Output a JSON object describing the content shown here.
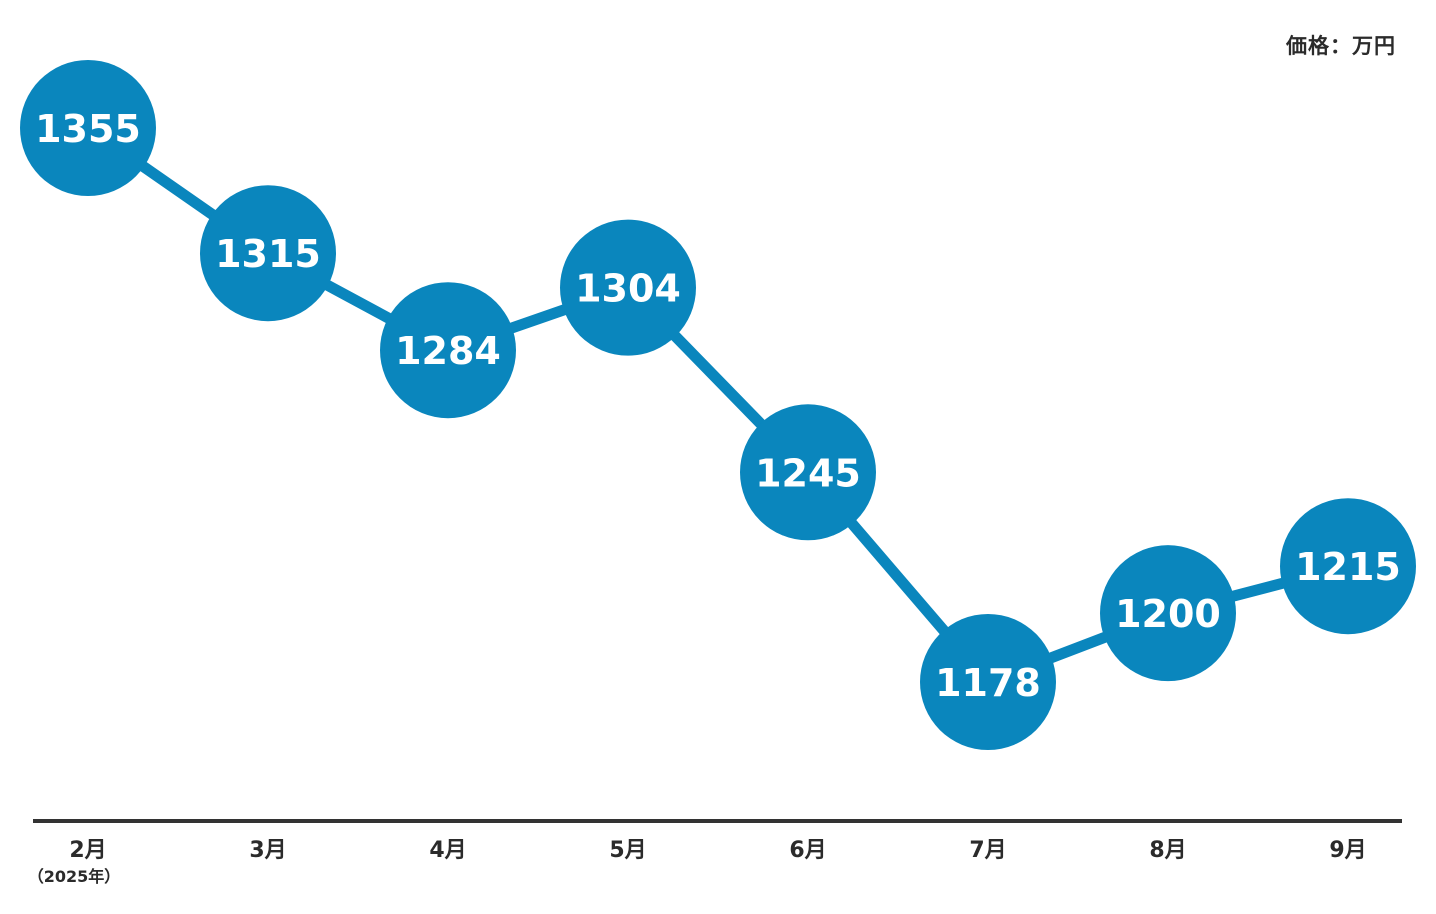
{
  "unit_label": "価格：万円",
  "colors": {
    "series": "#0A86BD",
    "axis": "#333333",
    "label_text": "#ffffff",
    "tick_text": "#2b2b2b"
  },
  "chart_data": {
    "type": "line",
    "categories": [
      "2月",
      "3月",
      "4月",
      "5月",
      "6月",
      "7月",
      "8月",
      "9月"
    ],
    "category_sublabels": [
      "（2025年）",
      "",
      "",
      "",
      "",
      "",
      "",
      ""
    ],
    "series": [
      {
        "values": [
          1355,
          1315,
          1284,
          1304,
          1245,
          1178,
          1200,
          1215
        ]
      }
    ],
    "title": "",
    "xlabel": "",
    "ylabel": "",
    "ylim": [
      1145,
      1415
    ],
    "grid": false,
    "legend": "none",
    "data_labels": true
  }
}
